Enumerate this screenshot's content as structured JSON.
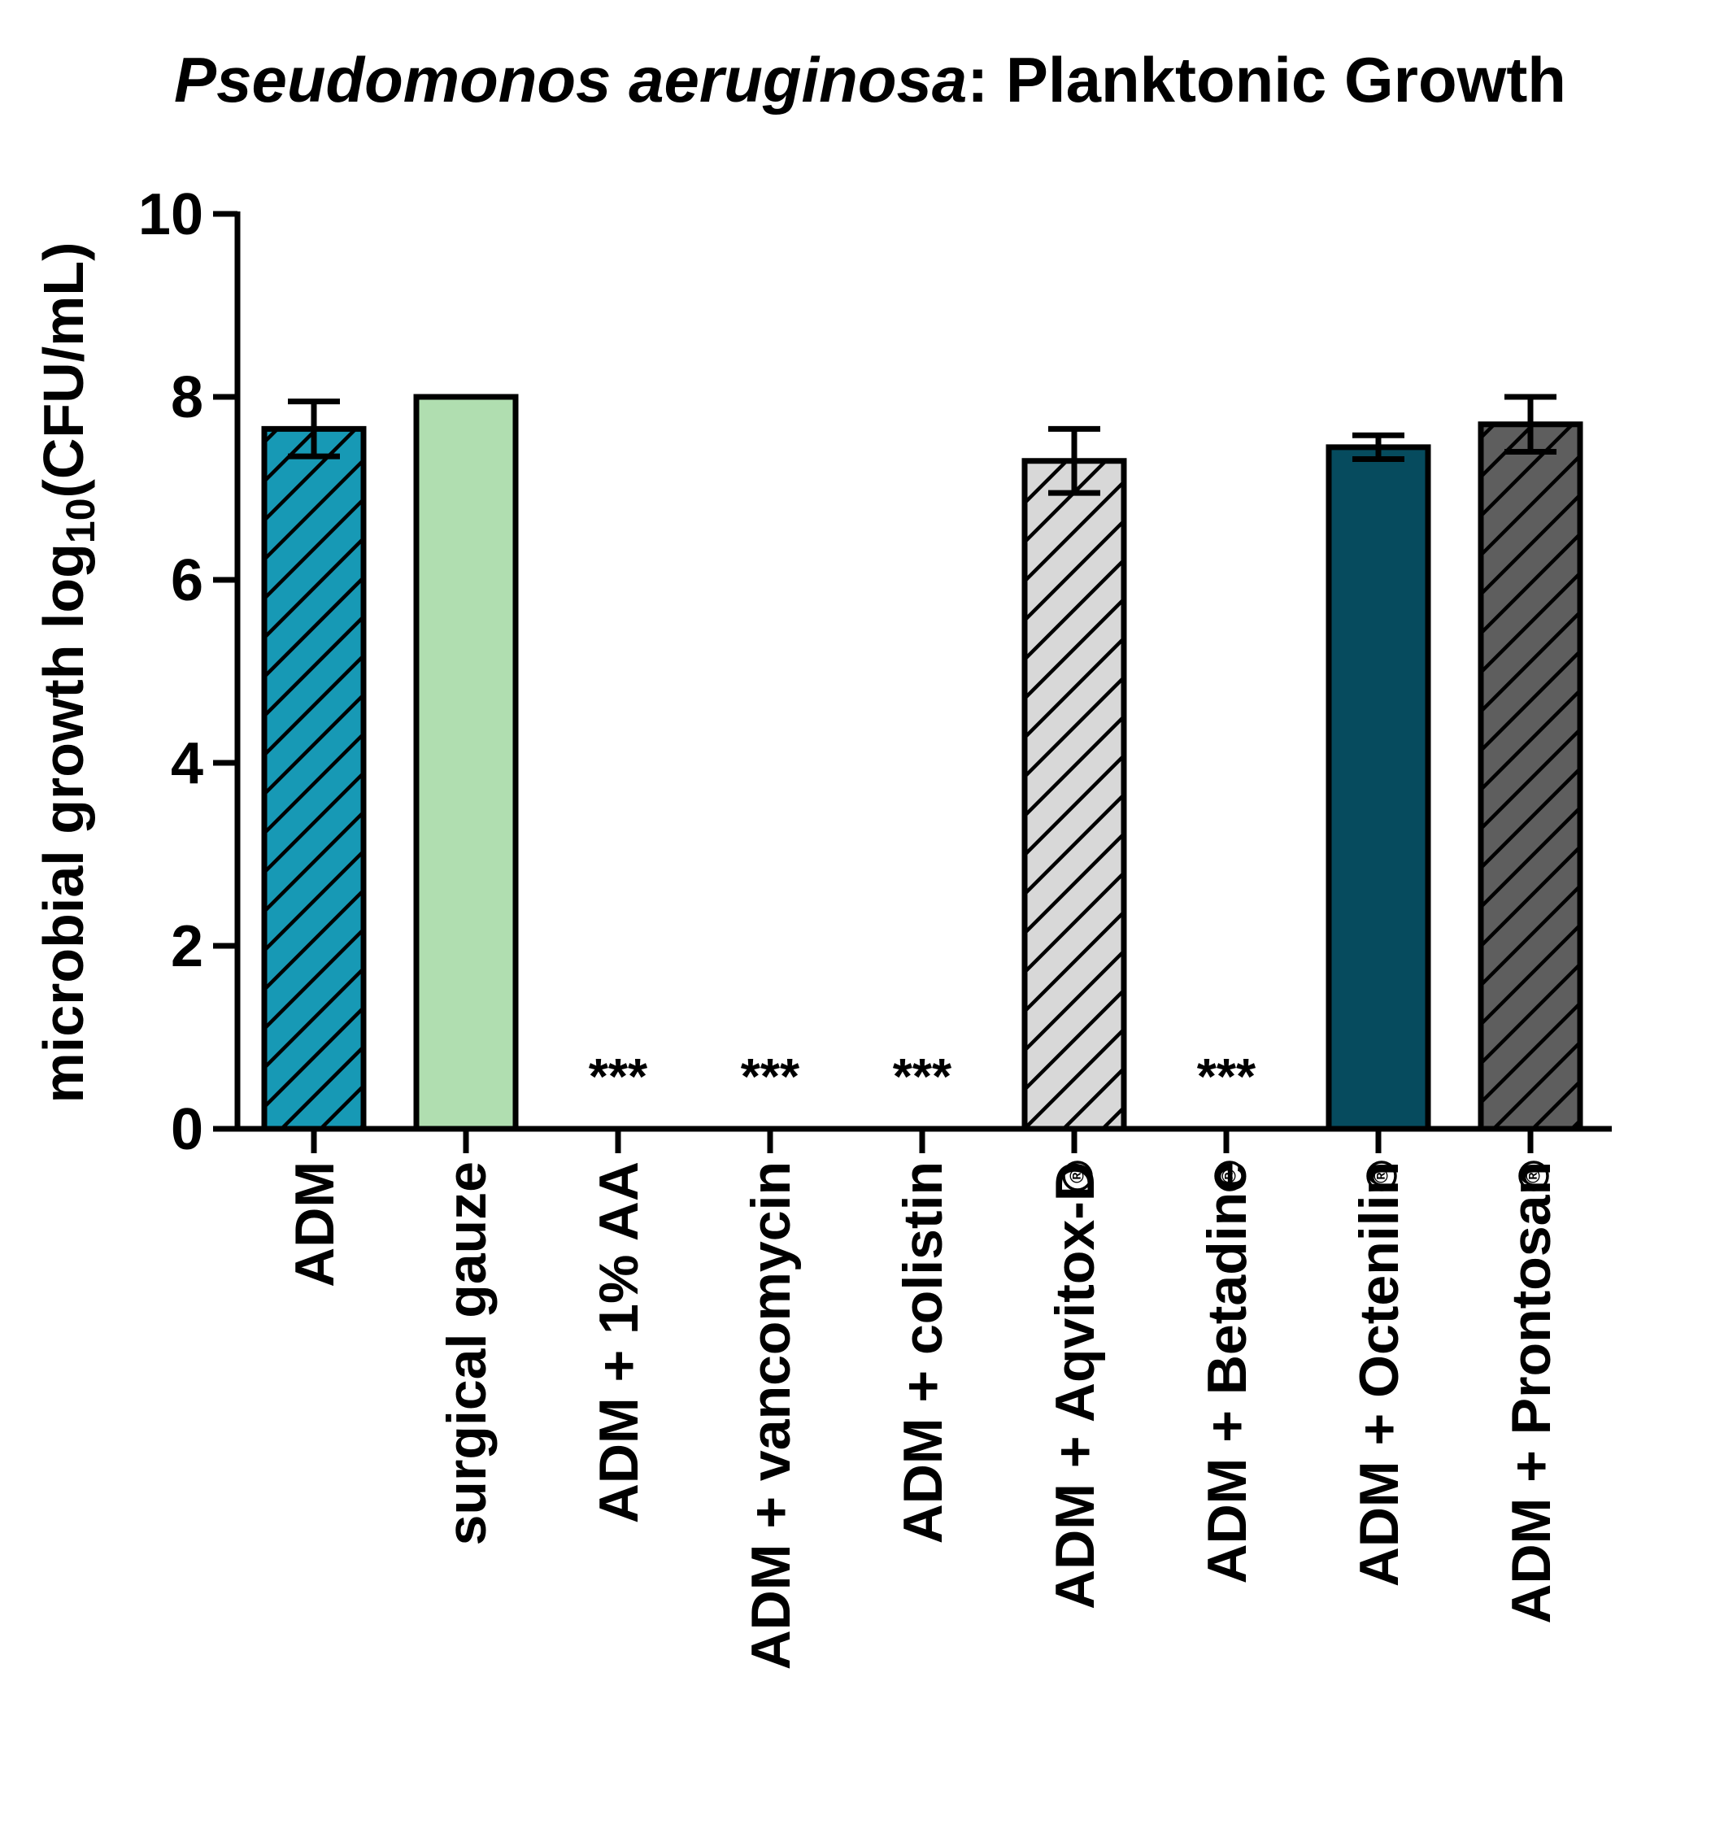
{
  "chart_data": {
    "type": "bar",
    "title_italic": "Pseudomonos aeruginosa",
    "title_rest": ": Planktonic Growth",
    "ylabel_main": "microbial growth log",
    "ylabel_sub": "10",
    "ylabel_end": "(CFU/mL)",
    "xlabel": "",
    "ylim": [
      0,
      10
    ],
    "yticks": [
      0,
      2,
      4,
      6,
      8,
      10
    ],
    "registered_mark": "®",
    "categories": [
      {
        "label": "ADM",
        "registered": false
      },
      {
        "label": "surgical gauze",
        "registered": false
      },
      {
        "label": "ADM + 1% AA",
        "registered": false
      },
      {
        "label": "ADM + vancomycin",
        "registered": false
      },
      {
        "label": "ADM + colistin",
        "registered": false
      },
      {
        "label": "ADM + Aqvitox-D",
        "registered": true
      },
      {
        "label": "ADM + Betadine",
        "registered": true
      },
      {
        "label": "ADM + Octenilin",
        "registered": true
      },
      {
        "label": "ADM + Prontosan",
        "registered": true
      }
    ],
    "values": [
      7.65,
      8.0,
      0,
      0,
      0,
      7.3,
      0,
      7.45,
      7.7
    ],
    "errors": [
      0.3,
      0,
      0,
      0,
      0,
      0.35,
      0,
      0.13,
      0.3
    ],
    "significance": [
      "",
      "",
      "***",
      "***",
      "***",
      "",
      "***",
      "",
      ""
    ],
    "fills": [
      "#1799B5",
      "#B0DEB0",
      "",
      "",
      "",
      "#D8D8D8",
      "",
      "#064B5E",
      "#5E5E5E"
    ],
    "hatched": [
      true,
      false,
      false,
      false,
      false,
      true,
      false,
      false,
      true
    ],
    "grid": false,
    "legend": "none"
  }
}
